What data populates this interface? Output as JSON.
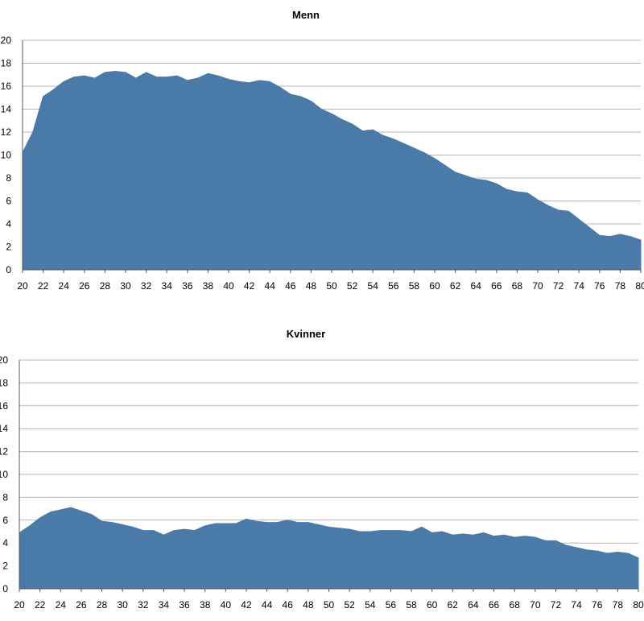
{
  "chart_data": [
    {
      "type": "area",
      "title": "Menn",
      "color": "#4a7aa7",
      "ylim": [
        0,
        20
      ],
      "yticks": [
        "0",
        "2",
        "4",
        "6",
        "8",
        "10",
        "12",
        "14",
        "16",
        "18",
        "20"
      ],
      "xticks": [
        "20",
        "22",
        "24",
        "26",
        "28",
        "30",
        "32",
        "34",
        "36",
        "38",
        "40",
        "42",
        "44",
        "46",
        "48",
        "50",
        "52",
        "54",
        "56",
        "58",
        "60",
        "62",
        "64",
        "66",
        "68",
        "70",
        "72",
        "74",
        "76",
        "78",
        "80"
      ],
      "x": [
        20,
        21,
        22,
        23,
        24,
        25,
        26,
        27,
        28,
        29,
        30,
        31,
        32,
        33,
        34,
        35,
        36,
        37,
        38,
        39,
        40,
        41,
        42,
        43,
        44,
        45,
        46,
        47,
        48,
        49,
        50,
        51,
        52,
        53,
        54,
        55,
        56,
        57,
        58,
        59,
        60,
        61,
        62,
        63,
        64,
        65,
        66,
        67,
        68,
        69,
        70,
        71,
        72,
        73,
        74,
        75,
        76,
        77,
        78,
        79,
        80
      ],
      "values": [
        10.2,
        12.0,
        15.1,
        15.7,
        16.4,
        16.8,
        16.9,
        16.7,
        17.2,
        17.3,
        17.2,
        16.7,
        17.2,
        16.8,
        16.8,
        16.9,
        16.5,
        16.7,
        17.1,
        16.9,
        16.6,
        16.4,
        16.3,
        16.5,
        16.4,
        15.9,
        15.3,
        15.1,
        14.7,
        14.0,
        13.6,
        13.1,
        12.7,
        12.1,
        12.2,
        11.7,
        11.4,
        11.0,
        10.6,
        10.2,
        9.7,
        9.1,
        8.5,
        8.2,
        7.9,
        7.8,
        7.5,
        7.0,
        6.8,
        6.7,
        6.1,
        5.6,
        5.2,
        5.1,
        4.4,
        3.7,
        3.0,
        2.9,
        3.1,
        2.9,
        2.6
      ],
      "grid": true
    },
    {
      "type": "area",
      "title": "Kvinner",
      "color": "#4a7aa7",
      "ylim": [
        0,
        20
      ],
      "yticks": [
        "0",
        "2",
        "4",
        "6",
        "8",
        "10",
        "12",
        "14",
        "16",
        "18",
        "20"
      ],
      "xticks": [
        "20",
        "22",
        "24",
        "26",
        "28",
        "30",
        "32",
        "34",
        "36",
        "38",
        "40",
        "42",
        "44",
        "46",
        "48",
        "50",
        "52",
        "54",
        "56",
        "58",
        "60",
        "62",
        "64",
        "66",
        "68",
        "70",
        "72",
        "74",
        "76",
        "78",
        "80"
      ],
      "x": [
        20,
        21,
        22,
        23,
        24,
        25,
        26,
        27,
        28,
        29,
        30,
        31,
        32,
        33,
        34,
        35,
        36,
        37,
        38,
        39,
        40,
        41,
        42,
        43,
        44,
        45,
        46,
        47,
        48,
        49,
        50,
        51,
        52,
        53,
        54,
        55,
        56,
        57,
        58,
        59,
        60,
        61,
        62,
        63,
        64,
        65,
        66,
        67,
        68,
        69,
        70,
        71,
        72,
        73,
        74,
        75,
        76,
        77,
        78,
        79,
        80
      ],
      "values": [
        4.9,
        5.5,
        6.2,
        6.7,
        6.9,
        7.1,
        6.8,
        6.5,
        5.9,
        5.8,
        5.6,
        5.4,
        5.1,
        5.1,
        4.7,
        5.1,
        5.2,
        5.1,
        5.5,
        5.7,
        5.7,
        5.7,
        6.1,
        5.9,
        5.8,
        5.8,
        6.0,
        5.8,
        5.8,
        5.6,
        5.4,
        5.3,
        5.2,
        5.0,
        5.0,
        5.1,
        5.1,
        5.1,
        5.0,
        5.4,
        4.9,
        5.0,
        4.7,
        4.8,
        4.7,
        4.9,
        4.6,
        4.7,
        4.5,
        4.6,
        4.5,
        4.2,
        4.2,
        3.8,
        3.6,
        3.4,
        3.3,
        3.1,
        3.2,
        3.1,
        2.7
      ],
      "grid": true
    }
  ]
}
